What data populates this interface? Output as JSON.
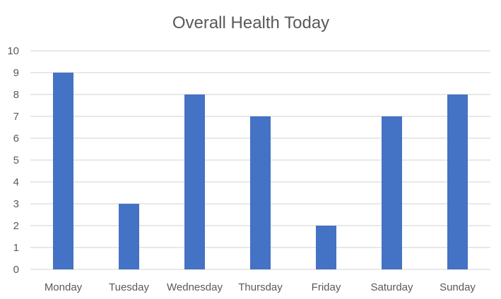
{
  "chart_data": {
    "type": "bar",
    "title": "Overall Health Today",
    "xlabel": "",
    "ylabel": "",
    "categories": [
      "Monday",
      "Tuesday",
      "Wednesday",
      "Thursday",
      "Friday",
      "Saturday",
      "Sunday"
    ],
    "values": [
      9,
      3,
      8,
      7,
      2,
      7,
      8
    ],
    "ylim": [
      0,
      10
    ],
    "yticks": [
      0,
      1,
      2,
      3,
      4,
      5,
      6,
      7,
      8,
      9,
      10
    ],
    "grid": true,
    "legend": "none",
    "bar_color": "#4472C4",
    "grid_color": "#D9D9D9",
    "text_color": "#595959"
  }
}
